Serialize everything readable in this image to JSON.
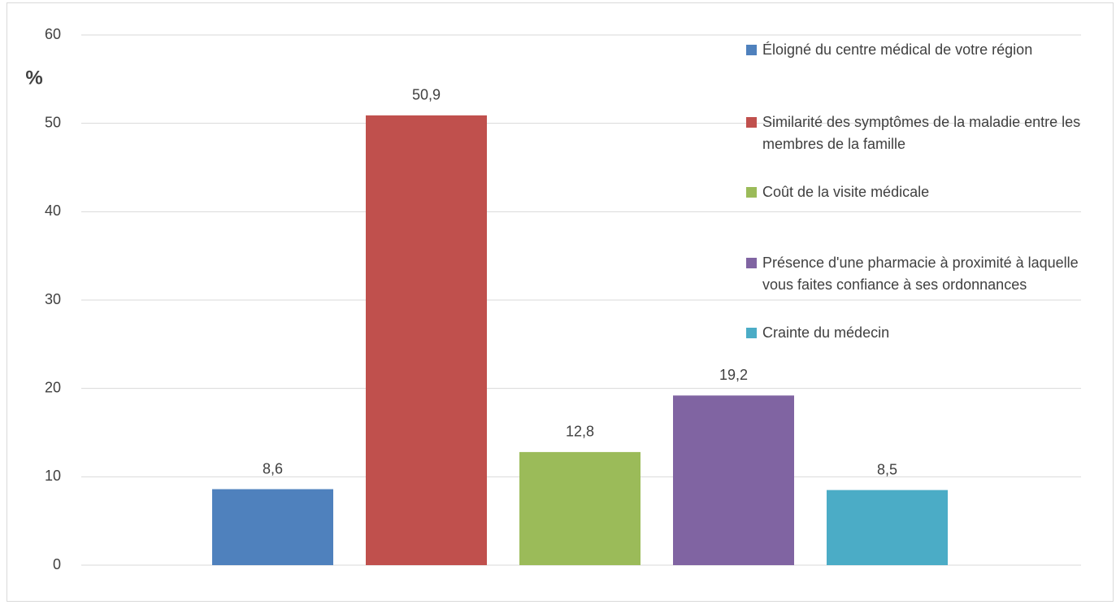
{
  "chart_data": {
    "type": "bar",
    "y_label": "%",
    "series": [
      {
        "name": "Éloigné du centre médical de votre région",
        "color": "#4f81bd",
        "values": [
          8.6
        ],
        "value_labels": [
          "8,6"
        ]
      },
      {
        "name": "Similarité des symptômes de la maladie entre les membres de la famille",
        "color": "#c0504d",
        "values": [
          50.9
        ],
        "value_labels": [
          "50,9"
        ]
      },
      {
        "name": "Coût de la visite médicale",
        "color": "#9bbb59",
        "values": [
          12.8
        ],
        "value_labels": [
          "12,8"
        ]
      },
      {
        "name": "Présence d'une pharmacie à proximité à laquelle vous faites confiance à ses ordonnances",
        "color": "#8064a2",
        "values": [
          19.2
        ],
        "value_labels": [
          "19,2"
        ]
      },
      {
        "name": "Crainte du médecin",
        "color": "#4bacc6",
        "values": [
          8.5
        ],
        "value_labels": [
          "8,5"
        ]
      }
    ],
    "ylim": [
      0,
      60
    ],
    "yticks": [
      0,
      10,
      20,
      30,
      40,
      50,
      60
    ],
    "grid": true,
    "legend": "top-right"
  }
}
